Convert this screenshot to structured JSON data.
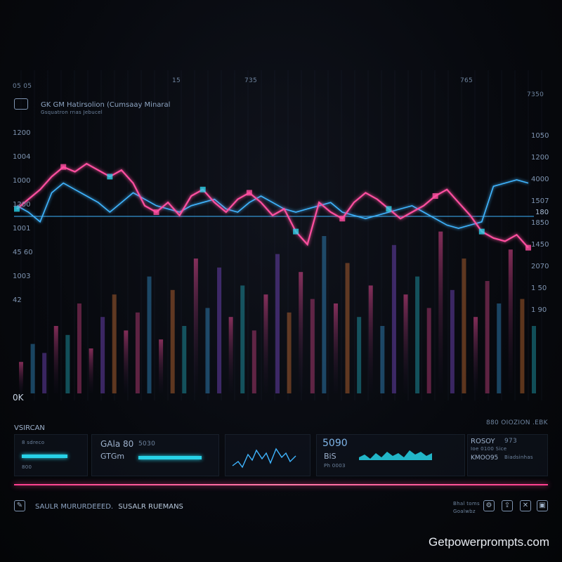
{
  "header": {
    "title": "GK GM Hatirsolion (Cumsaay Minaral",
    "subtitle": "Gsquatron rnas Jebucel",
    "corner_label": "05 05",
    "top_ticks": [
      "15",
      "735",
      "765"
    ],
    "top_right": "7350"
  },
  "chart_data": {
    "type": "line",
    "title": "GK GM Hatirsolion (Cumsaay Minaral",
    "y_labels_left": [
      "1200",
      "1004",
      "1000",
      "1200",
      "1001",
      "45 60",
      "1003",
      "42"
    ],
    "y_labels_right": [
      "1050",
      "1200",
      "4000",
      "1507",
      "1850",
      "1450",
      "2070",
      "1 50",
      "1 90"
    ],
    "baseline_label": "180",
    "pink_series": {
      "name": "",
      "x": [
        0,
        1,
        2,
        3,
        4,
        5,
        6,
        7,
        8,
        9,
        10,
        11,
        12,
        13,
        14,
        15,
        16,
        17,
        18,
        19,
        20,
        21,
        22,
        23,
        24,
        25,
        26,
        27,
        28,
        29,
        30,
        31,
        32,
        33,
        34,
        35,
        36,
        37,
        38,
        39,
        40,
        41,
        42,
        43,
        44
      ],
      "values": [
        62,
        68,
        74,
        82,
        88,
        85,
        90,
        86,
        82,
        86,
        78,
        64,
        60,
        66,
        58,
        70,
        74,
        66,
        60,
        68,
        72,
        66,
        58,
        62,
        48,
        40,
        66,
        60,
        56,
        66,
        72,
        68,
        62,
        56,
        60,
        64,
        70,
        74,
        66,
        58,
        48,
        44,
        42,
        46,
        38
      ],
      "color": "#ff4fa0"
    },
    "blue_series": {
      "name": "",
      "values": [
        64,
        60,
        54,
        72,
        78,
        74,
        70,
        66,
        60,
        66,
        72,
        68,
        64,
        62,
        60,
        64,
        66,
        68,
        62,
        60,
        66,
        70,
        66,
        62,
        60,
        62,
        64,
        66,
        60,
        58,
        56,
        58,
        60,
        62,
        64,
        60,
        56,
        52,
        50,
        52,
        54,
        76,
        78,
        80,
        78
      ],
      "color": "#3fb5ff"
    },
    "volume_bars": [
      14,
      22,
      18,
      30,
      26,
      40,
      20,
      34,
      44,
      28,
      36,
      52,
      24,
      46,
      30,
      60,
      38,
      56,
      34,
      48,
      28,
      44,
      62,
      36,
      54,
      42,
      70,
      40,
      58,
      34,
      48,
      30,
      66,
      44,
      52,
      38,
      72,
      46,
      60,
      34,
      50,
      40,
      64,
      42,
      30
    ],
    "x_axis_label": "0K",
    "ylim": [
      0,
      100
    ]
  },
  "section_label": "VSIRCAN",
  "section_right_label": "880 OIOZION .EBK",
  "panels": [
    {
      "top": "8 sdreco",
      "bottom": "800",
      "fill": 0.85
    },
    {
      "big": "GAla 80",
      "big2": "GTGm",
      "small": "5030",
      "fill": 0.9
    },
    {
      "big": "5090",
      "big2": "BiS",
      "note": "Ph 0003"
    },
    {
      "title": "ROSOY",
      "subtitle": "KMOO95",
      "value": "973",
      "lines": [
        "Ioe 0100 Sice",
        "Biadsinhas"
      ]
    }
  ],
  "footer": {
    "text": "SAULR MURURDEEED.",
    "highlight": "SUSALR RUEMANS",
    "right_notes": [
      "Bhal toms",
      "Goalwbz"
    ]
  },
  "watermark": "Getpowerprompts.com",
  "colors": {
    "accent_pink": "#ff3e8f",
    "accent_cyan": "#27d3e8",
    "accent_blue": "#3fb5ff"
  }
}
